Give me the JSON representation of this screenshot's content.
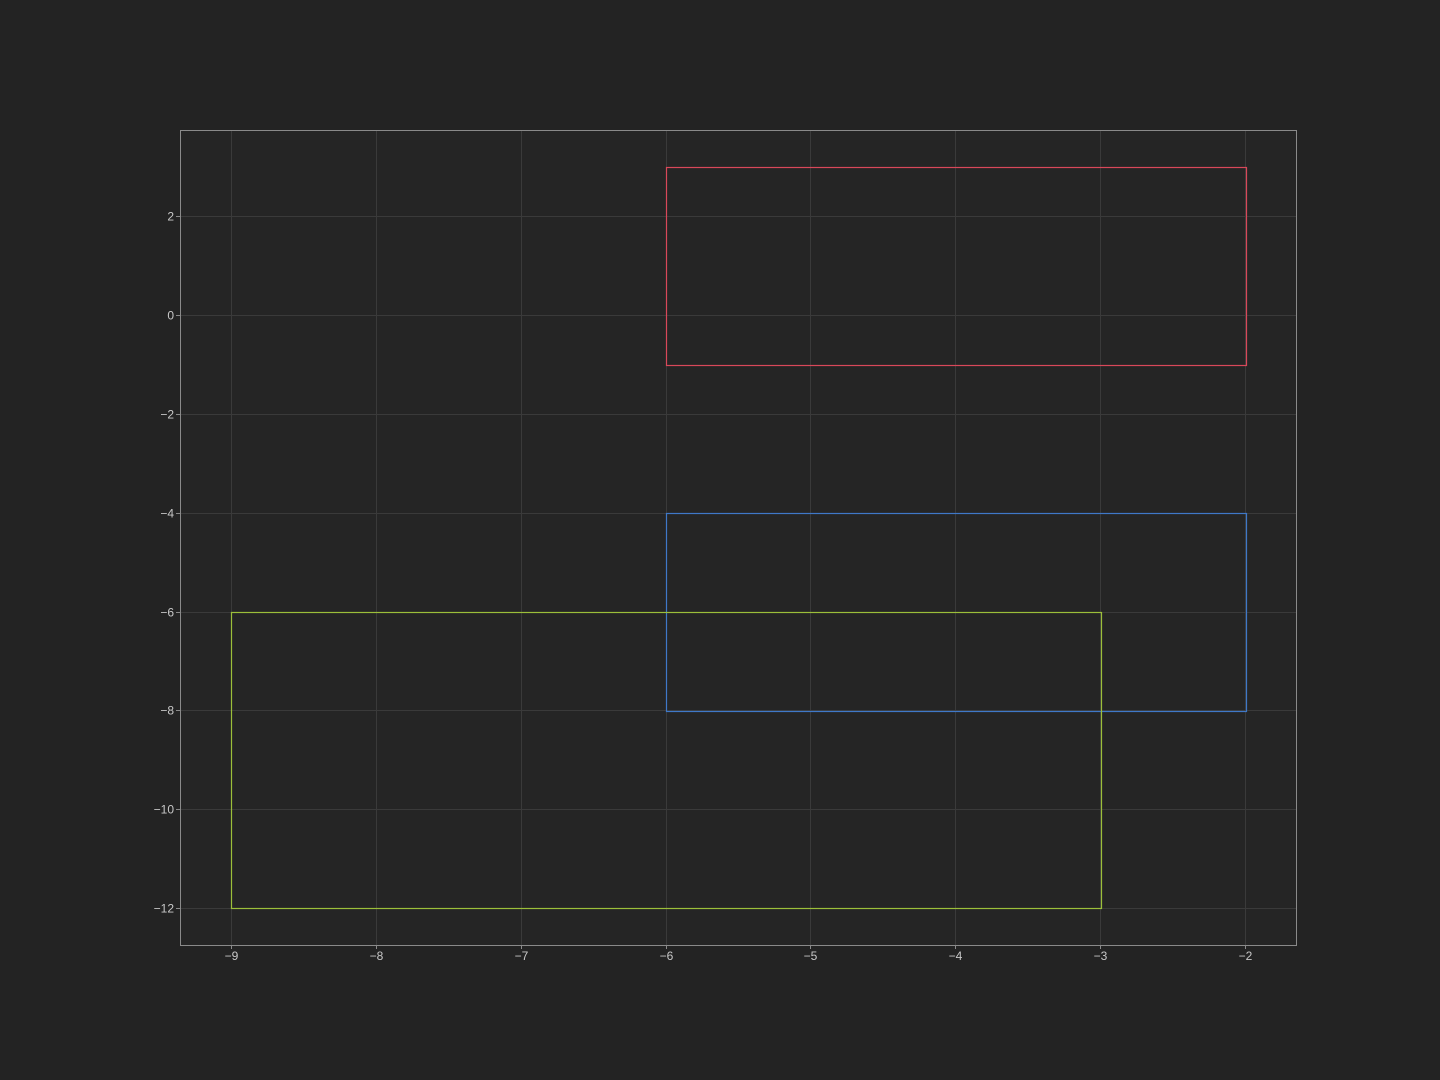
{
  "colors": {
    "background": "#232323",
    "plot_background": "#252525",
    "grid": "#3a3a3a",
    "frame": "#8a8a8a",
    "tick_text": "#c8c8c8"
  },
  "chart_data": {
    "type": "rectangles",
    "title": "",
    "xlabel": "",
    "ylabel": "",
    "xlim": [
      -9.35,
      -1.65
    ],
    "ylim": [
      -12.75,
      3.75
    ],
    "grid": true,
    "x_ticks": [
      -9,
      -8,
      -7,
      -6,
      -5,
      -4,
      -3,
      -2
    ],
    "x_tick_labels": [
      "−9",
      "−8",
      "−7",
      "−6",
      "−5",
      "−4",
      "−3",
      "−2"
    ],
    "y_ticks": [
      2,
      0,
      -2,
      -4,
      -6,
      -8,
      -10,
      -12
    ],
    "y_tick_labels": [
      "2",
      "0",
      "−2",
      "−4",
      "−6",
      "−8",
      "−10",
      "−12"
    ],
    "rectangles": [
      {
        "x0": -6,
        "x1": -2,
        "y0": -1,
        "y1": 3,
        "color": "#d9485a"
      },
      {
        "x0": -6,
        "x1": -2,
        "y0": -8,
        "y1": -4,
        "color": "#3f78c8"
      },
      {
        "x0": -9,
        "x1": -3,
        "y0": -12,
        "y1": -6,
        "color": "#9cbf3a"
      }
    ]
  }
}
